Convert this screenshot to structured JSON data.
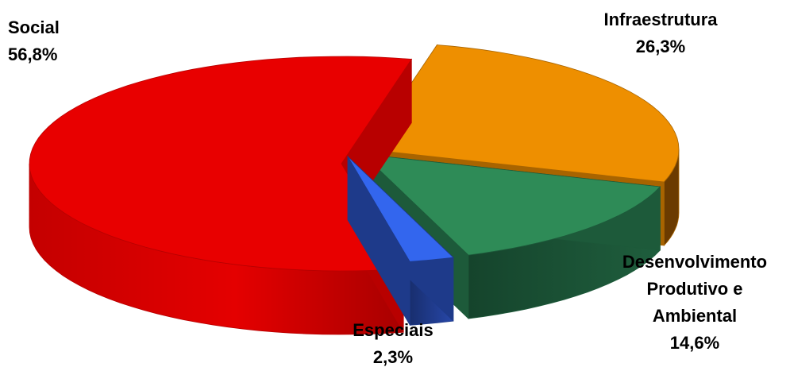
{
  "chart_data": {
    "type": "pie",
    "style": "3d-exploded",
    "slices": [
      {
        "label": "Social",
        "value_label": "56,8%",
        "value": 56.8,
        "color": "#e80000"
      },
      {
        "label": "Infraestrutura",
        "value_label": "26,3%",
        "value": 26.3,
        "color": "#ee8f00"
      },
      {
        "label": "Desenvolvimento Produtivo e Ambiental",
        "label_lines": [
          "Desenvolvimento",
          "Produtivo e",
          "Ambiental"
        ],
        "value_label": "14,6%",
        "value": 14.6,
        "color": "#2e8b57"
      },
      {
        "label": "Especiais",
        "value_label": "2,3%",
        "value": 2.3,
        "color": "#3366ee"
      }
    ]
  }
}
